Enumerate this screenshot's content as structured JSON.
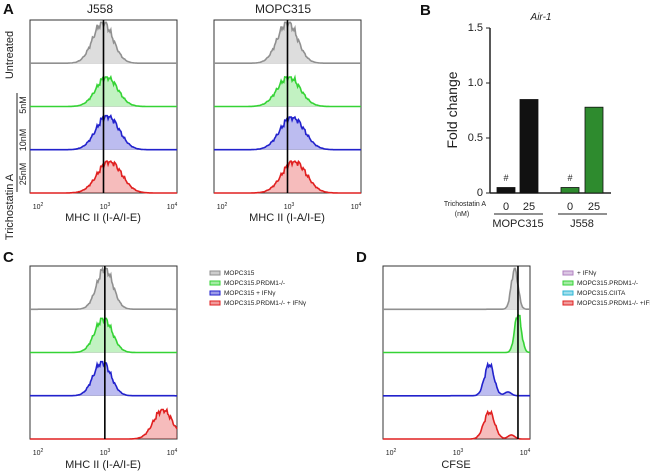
{
  "chart_data": [
    {
      "panel": "A",
      "type": "histogram-overlay",
      "xlabel": "MHC II (I-A/I-E)",
      "x_ticks": [
        "10^2",
        "10^3",
        "10^4"
      ],
      "row_group_label": "Trichostatin A",
      "row_labels": [
        "Untreated",
        "5nM",
        "10nM",
        "25nM"
      ],
      "subpanels": [
        {
          "title": "J558",
          "rows": [
            {
              "label": "Untreated",
              "color": "#909090",
              "peak_log": 2.97,
              "width": 0.15,
              "height": 0.9
            },
            {
              "label": "5nM",
              "color": "#35d335",
              "peak_log": 3.03,
              "width": 0.16,
              "height": 0.65
            },
            {
              "label": "10nM",
              "color": "#2222cc",
              "peak_log": 3.04,
              "width": 0.17,
              "height": 0.75
            },
            {
              "label": "25nM",
              "color": "#e02020",
              "peak_log": 3.07,
              "width": 0.18,
              "height": 0.7
            }
          ]
        },
        {
          "title": "MOPC315",
          "rows": [
            {
              "label": "Untreated",
              "color": "#909090",
              "peak_log": 2.98,
              "width": 0.15,
              "height": 0.9
            },
            {
              "label": "5nM",
              "color": "#35d335",
              "peak_log": 3.0,
              "width": 0.17,
              "height": 0.65
            },
            {
              "label": "10nM",
              "color": "#2222cc",
              "peak_log": 3.05,
              "width": 0.18,
              "height": 0.72
            },
            {
              "label": "25nM",
              "color": "#e02020",
              "peak_log": 3.08,
              "width": 0.18,
              "height": 0.7
            }
          ]
        }
      ]
    },
    {
      "panel": "B",
      "type": "bar",
      "title": "Air-1",
      "ylabel": "Fold change",
      "ylim": [
        0,
        1.5
      ],
      "y_ticks": [
        "0",
        "0.5",
        "1.0",
        "1.5"
      ],
      "xlabel": "Trichostatin A (nM)",
      "groups": [
        "MOPC315",
        "J558"
      ],
      "categories": [
        "0",
        "25",
        "0",
        "25"
      ],
      "values": [
        0.05,
        0.85,
        0.05,
        0.78
      ],
      "colors": [
        "#111111",
        "#111111",
        "#2e8b2e",
        "#2e8b2e"
      ],
      "annotations": [
        "#",
        "",
        "#",
        ""
      ]
    },
    {
      "panel": "C",
      "type": "histogram-overlay",
      "xlabel": "MHC II (I-A/I-E)",
      "x_ticks": [
        "10^2",
        "10^3",
        "10^4"
      ],
      "legend": [
        {
          "name": "MOPC315",
          "color": "#909090"
        },
        {
          "name": "MOPC315.PRDM1-/-",
          "color": "#35d335"
        },
        {
          "name": "MOPC315 + IFNγ",
          "color": "#2222cc"
        },
        {
          "name": "MOPC315.PRDM1-/- + IFNγ",
          "color": "#e02020"
        }
      ],
      "rows": [
        {
          "name": "MOPC315",
          "color": "#909090",
          "peak_log": 3.0,
          "width": 0.12,
          "height": 0.9
        },
        {
          "name": "MOPC315.PRDM1-/-",
          "color": "#35d335",
          "peak_log": 2.98,
          "width": 0.13,
          "height": 0.75
        },
        {
          "name": "MOPC315 + IFNγ",
          "color": "#2222cc",
          "peak_log": 2.96,
          "width": 0.13,
          "height": 0.75
        },
        {
          "name": "MOPC315.PRDM1-/- + IFNγ",
          "color": "#e02020",
          "peak_log": 3.87,
          "width": 0.14,
          "height": 0.65
        }
      ]
    },
    {
      "panel": "D",
      "type": "histogram-overlay",
      "xlabel": "CFSE",
      "x_ticks": [
        "10^2",
        "10^3",
        "10^4"
      ],
      "legend": [
        {
          "name": "+ IFNγ",
          "color": "#b080c0"
        },
        {
          "name": "MOPC315.PRDM1-/-",
          "color": "#35d335"
        },
        {
          "name": "MOPC315.CIITA",
          "color": "#2bb5d5"
        },
        {
          "name": "MOPC315.PRDM1-/- +IFNγ",
          "color": "#e02020"
        }
      ],
      "rows": [
        {
          "name": "+ IFNγ",
          "color": "#909090",
          "peak_log": 3.85,
          "width": 0.05,
          "height": 0.9
        },
        {
          "name": "MOPC315.PRDM1-/-",
          "color": "#35d335",
          "peak_log": 3.9,
          "width": 0.05,
          "height": 0.85
        },
        {
          "name": "MOPC315.CIITA",
          "color": "#2222cc",
          "peak_log": 3.47,
          "width": 0.07,
          "height": 0.7
        },
        {
          "name": "MOPC315.PRDM1-/- +IFNγ",
          "color": "#e02020",
          "peak_log": 3.47,
          "width": 0.08,
          "height": 0.6
        }
      ]
    }
  ],
  "labels": {
    "panel_a": "A",
    "panel_b": "B",
    "panel_c": "C",
    "panel_d": "D",
    "j558": "J558",
    "mopc315": "MOPC315",
    "trichostatin": "Trichostatin A",
    "untreated": "Untreated",
    "nm5": "5nM",
    "nm10": "10nM",
    "nm25": "25nM",
    "mhc": "MHC II (I-A/I-E)",
    "cfse": "CFSE",
    "b_title": "Air-1",
    "b_ylabel": "Fold change",
    "b_tsa1": "Trichostatin A",
    "b_tsa2": "(nM)",
    "b_x0": "0",
    "b_x25": "25",
    "hash": "#",
    "tick_base": "10",
    "exp2": "2",
    "exp3": "3",
    "exp4": "4"
  }
}
